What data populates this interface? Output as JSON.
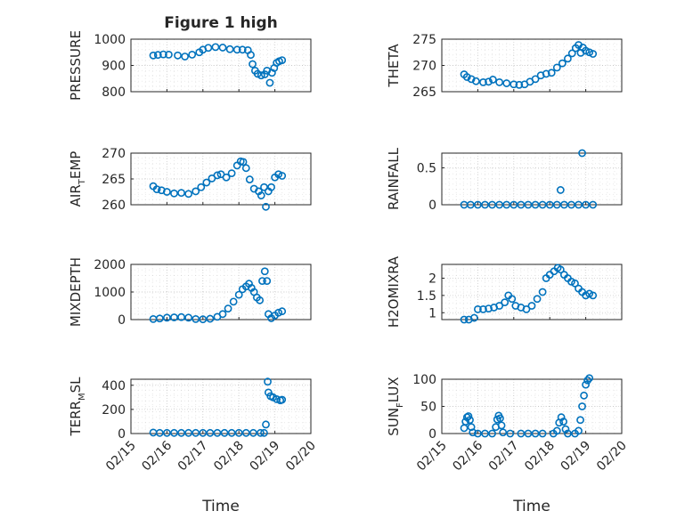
{
  "window": {
    "title": "Figure 1 high"
  },
  "chart_data": [
    {
      "type": "scatter",
      "ylabel": "PRESSURE",
      "title": "Figure 1 high",
      "xlim": [
        "02/15",
        "02/20"
      ],
      "ylim": [
        800,
        1000
      ],
      "yticks": [
        "800",
        "900",
        "1000"
      ],
      "xticklabels": [],
      "series": [
        {
          "values": [
            [
              15.62,
              938
            ],
            [
              15.75,
              940
            ],
            [
              15.9,
              942
            ],
            [
              16.05,
              941
            ],
            [
              16.3,
              938
            ],
            [
              16.5,
              934
            ],
            [
              16.7,
              941
            ],
            [
              16.9,
              950
            ],
            [
              17.0,
              960
            ],
            [
              17.15,
              967
            ],
            [
              17.35,
              970
            ],
            [
              17.55,
              968
            ],
            [
              17.75,
              962
            ],
            [
              17.95,
              960
            ],
            [
              18.1,
              960
            ],
            [
              18.25,
              958
            ],
            [
              18.33,
              940
            ],
            [
              18.38,
              905
            ],
            [
              18.45,
              880
            ],
            [
              18.52,
              868
            ],
            [
              18.62,
              862
            ],
            [
              18.72,
              866
            ],
            [
              18.78,
              880
            ],
            [
              18.86,
              834
            ],
            [
              18.92,
              872
            ],
            [
              18.98,
              890
            ],
            [
              19.05,
              910
            ],
            [
              19.12,
              916
            ],
            [
              19.2,
              920
            ]
          ]
        }
      ]
    },
    {
      "type": "scatter",
      "ylabel": "THETA",
      "xlim": [
        "02/15",
        "02/20"
      ],
      "ylim": [
        265,
        275
      ],
      "yticks": [
        "265",
        "270",
        "275"
      ],
      "xticklabels": [],
      "series": [
        {
          "values": [
            [
              15.62,
              268.3
            ],
            [
              15.7,
              267.8
            ],
            [
              15.82,
              267.4
            ],
            [
              15.95,
              267.0
            ],
            [
              16.15,
              266.8
            ],
            [
              16.3,
              266.9
            ],
            [
              16.42,
              267.3
            ],
            [
              16.6,
              266.8
            ],
            [
              16.8,
              266.6
            ],
            [
              17.0,
              266.4
            ],
            [
              17.15,
              266.3
            ],
            [
              17.3,
              266.4
            ],
            [
              17.45,
              266.9
            ],
            [
              17.6,
              267.4
            ],
            [
              17.75,
              268.1
            ],
            [
              17.9,
              268.4
            ],
            [
              18.05,
              268.6
            ],
            [
              18.2,
              269.6
            ],
            [
              18.35,
              270.4
            ],
            [
              18.5,
              271.3
            ],
            [
              18.62,
              272.3
            ],
            [
              18.72,
              273.3
            ],
            [
              18.8,
              273.9
            ],
            [
              18.86,
              272.4
            ],
            [
              18.92,
              273.4
            ],
            [
              19.0,
              272.8
            ],
            [
              19.1,
              272.5
            ],
            [
              19.2,
              272.2
            ]
          ]
        }
      ]
    },
    {
      "type": "scatter",
      "ylabel": "AIR_TEMP",
      "xlim": [
        "02/15",
        "02/20"
      ],
      "ylim": [
        260,
        270
      ],
      "yticks": [
        "260",
        "265",
        "270"
      ],
      "xticklabels": [],
      "series": [
        {
          "values": [
            [
              15.62,
              263.6
            ],
            [
              15.72,
              263.0
            ],
            [
              15.85,
              262.8
            ],
            [
              16.0,
              262.5
            ],
            [
              16.2,
              262.2
            ],
            [
              16.4,
              262.3
            ],
            [
              16.6,
              262.1
            ],
            [
              16.8,
              262.6
            ],
            [
              16.95,
              263.4
            ],
            [
              17.1,
              264.3
            ],
            [
              17.25,
              265.1
            ],
            [
              17.4,
              265.7
            ],
            [
              17.5,
              265.9
            ],
            [
              17.65,
              265.3
            ],
            [
              17.8,
              266.1
            ],
            [
              17.95,
              267.6
            ],
            [
              18.05,
              268.4
            ],
            [
              18.12,
              268.3
            ],
            [
              18.2,
              267.1
            ],
            [
              18.3,
              264.9
            ],
            [
              18.42,
              263.1
            ],
            [
              18.55,
              262.6
            ],
            [
              18.62,
              261.8
            ],
            [
              18.7,
              263.4
            ],
            [
              18.75,
              259.6
            ],
            [
              18.82,
              262.6
            ],
            [
              18.9,
              263.4
            ],
            [
              19.0,
              265.3
            ],
            [
              19.1,
              265.9
            ],
            [
              19.2,
              265.6
            ]
          ]
        }
      ]
    },
    {
      "type": "scatter",
      "ylabel": "RAINFALL",
      "xlim": [
        "02/15",
        "02/20"
      ],
      "ylim": [
        0,
        0.7
      ],
      "yticks": [
        "0",
        "0.5"
      ],
      "xticklabels": [],
      "series": [
        {
          "values": [
            [
              15.62,
              0
            ],
            [
              15.8,
              0
            ],
            [
              16.0,
              0
            ],
            [
              16.2,
              0
            ],
            [
              16.4,
              0
            ],
            [
              16.6,
              0
            ],
            [
              16.8,
              0
            ],
            [
              17.0,
              0
            ],
            [
              17.2,
              0
            ],
            [
              17.4,
              0
            ],
            [
              17.6,
              0
            ],
            [
              17.8,
              0
            ],
            [
              18.0,
              0
            ],
            [
              18.2,
              0
            ],
            [
              18.4,
              0
            ],
            [
              18.6,
              0
            ],
            [
              18.8,
              0
            ],
            [
              19.0,
              0
            ],
            [
              19.2,
              0
            ],
            [
              18.3,
              0.2
            ],
            [
              18.9,
              0.7
            ]
          ]
        }
      ]
    },
    {
      "type": "scatter",
      "ylabel": "MIXDEPTH",
      "xlim": [
        "02/15",
        "02/20"
      ],
      "ylim": [
        0,
        2000
      ],
      "yticks": [
        "0",
        "1000",
        "2000"
      ],
      "xticklabels": [],
      "series": [
        {
          "values": [
            [
              15.62,
              20
            ],
            [
              15.8,
              40
            ],
            [
              16.0,
              70
            ],
            [
              16.2,
              80
            ],
            [
              16.4,
              90
            ],
            [
              16.6,
              70
            ],
            [
              16.8,
              20
            ],
            [
              17.0,
              10
            ],
            [
              17.2,
              30
            ],
            [
              17.4,
              100
            ],
            [
              17.55,
              200
            ],
            [
              17.7,
              400
            ],
            [
              17.85,
              650
            ],
            [
              18.0,
              900
            ],
            [
              18.1,
              1100
            ],
            [
              18.2,
              1200
            ],
            [
              18.28,
              1300
            ],
            [
              18.35,
              1150
            ],
            [
              18.42,
              1000
            ],
            [
              18.5,
              800
            ],
            [
              18.58,
              700
            ],
            [
              18.65,
              1400
            ],
            [
              18.72,
              1750
            ],
            [
              18.78,
              1400
            ],
            [
              18.82,
              200
            ],
            [
              18.9,
              50
            ],
            [
              19.0,
              150
            ],
            [
              19.1,
              250
            ],
            [
              19.2,
              300
            ]
          ]
        }
      ]
    },
    {
      "type": "scatter",
      "ylabel": "H2OMIXRA",
      "xlim": [
        "02/15",
        "02/20"
      ],
      "ylim": [
        0.8,
        2.4
      ],
      "yticks": [
        "1",
        "1.5",
        "2"
      ],
      "xticklabels": [],
      "series": [
        {
          "values": [
            [
              15.62,
              0.8
            ],
            [
              15.75,
              0.8
            ],
            [
              15.9,
              0.85
            ],
            [
              16.0,
              1.1
            ],
            [
              16.15,
              1.1
            ],
            [
              16.3,
              1.12
            ],
            [
              16.45,
              1.15
            ],
            [
              16.6,
              1.2
            ],
            [
              16.75,
              1.3
            ],
            [
              16.85,
              1.5
            ],
            [
              16.95,
              1.4
            ],
            [
              17.05,
              1.2
            ],
            [
              17.2,
              1.15
            ],
            [
              17.35,
              1.1
            ],
            [
              17.5,
              1.2
            ],
            [
              17.65,
              1.4
            ],
            [
              17.8,
              1.6
            ],
            [
              17.9,
              2.0
            ],
            [
              18.0,
              2.1
            ],
            [
              18.12,
              2.2
            ],
            [
              18.22,
              2.3
            ],
            [
              18.3,
              2.25
            ],
            [
              18.4,
              2.1
            ],
            [
              18.5,
              2.0
            ],
            [
              18.6,
              1.9
            ],
            [
              18.7,
              1.85
            ],
            [
              18.8,
              1.7
            ],
            [
              18.9,
              1.6
            ],
            [
              19.0,
              1.5
            ],
            [
              19.1,
              1.55
            ],
            [
              19.2,
              1.5
            ]
          ]
        }
      ]
    },
    {
      "type": "scatter",
      "ylabel": "TERR_MSL",
      "xlim": [
        "02/15",
        "02/20"
      ],
      "ylim": [
        0,
        450
      ],
      "yticks": [
        "0",
        "200",
        "400"
      ],
      "xticklabels": [
        "02/15",
        "02/16",
        "02/17",
        "02/18",
        "02/19",
        "02/20"
      ],
      "xlabel": "Time",
      "series": [
        {
          "values": [
            [
              15.62,
              8
            ],
            [
              15.8,
              5
            ],
            [
              16.0,
              5
            ],
            [
              16.2,
              5
            ],
            [
              16.4,
              5
            ],
            [
              16.6,
              5
            ],
            [
              16.8,
              5
            ],
            [
              17.0,
              5
            ],
            [
              17.2,
              5
            ],
            [
              17.4,
              5
            ],
            [
              17.6,
              5
            ],
            [
              17.8,
              5
            ],
            [
              18.0,
              5
            ],
            [
              18.2,
              5
            ],
            [
              18.4,
              5
            ],
            [
              18.6,
              5
            ],
            [
              18.7,
              5
            ],
            [
              18.75,
              75
            ],
            [
              18.8,
              430
            ],
            [
              18.82,
              340
            ],
            [
              18.88,
              310
            ],
            [
              18.95,
              300
            ],
            [
              19.05,
              285
            ],
            [
              19.15,
              275
            ],
            [
              19.2,
              280
            ]
          ]
        }
      ]
    },
    {
      "type": "scatter",
      "ylabel": "SUN_FLUX",
      "xlim": [
        "02/15",
        "02/20"
      ],
      "ylim": [
        0,
        100
      ],
      "yticks": [
        "0",
        "50",
        "100"
      ],
      "xticklabels": [
        "02/15",
        "02/16",
        "02/17",
        "02/18",
        "02/19",
        "02/20"
      ],
      "xlabel": "Time",
      "series": [
        {
          "values": [
            [
              15.62,
              10
            ],
            [
              15.66,
              22
            ],
            [
              15.7,
              30
            ],
            [
              15.74,
              32
            ],
            [
              15.78,
              25
            ],
            [
              15.82,
              12
            ],
            [
              15.86,
              2
            ],
            [
              16.0,
              0
            ],
            [
              16.2,
              0
            ],
            [
              16.4,
              0
            ],
            [
              16.5,
              12
            ],
            [
              16.54,
              26
            ],
            [
              16.58,
              33
            ],
            [
              16.62,
              28
            ],
            [
              16.66,
              15
            ],
            [
              16.7,
              2
            ],
            [
              16.9,
              0
            ],
            [
              17.2,
              0
            ],
            [
              17.4,
              0
            ],
            [
              17.6,
              0
            ],
            [
              17.8,
              0
            ],
            [
              18.1,
              0
            ],
            [
              18.2,
              5
            ],
            [
              18.26,
              20
            ],
            [
              18.32,
              30
            ],
            [
              18.38,
              22
            ],
            [
              18.44,
              8
            ],
            [
              18.5,
              0
            ],
            [
              18.7,
              0
            ],
            [
              18.8,
              5
            ],
            [
              18.85,
              25
            ],
            [
              18.9,
              50
            ],
            [
              18.95,
              70
            ],
            [
              19.0,
              90
            ],
            [
              19.05,
              98
            ],
            [
              19.1,
              102
            ]
          ]
        }
      ]
    }
  ]
}
